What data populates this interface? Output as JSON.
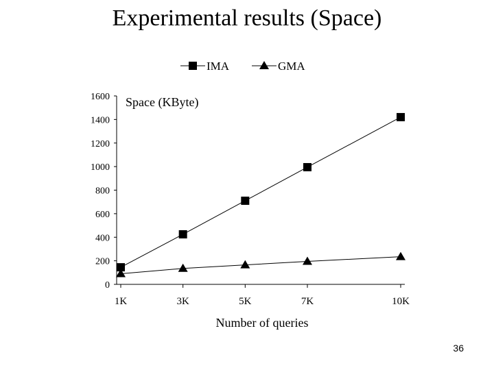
{
  "slide": {
    "title": "Experimental results (Space)",
    "page_number": "36"
  },
  "chart_data": {
    "type": "line",
    "title": "",
    "xlabel": "Number of queries",
    "ylabel": "Space (KByte)",
    "categories": [
      "1K",
      "3K",
      "5K",
      "7K",
      "10K"
    ],
    "x": [
      1,
      3,
      5,
      7,
      10
    ],
    "ylim": [
      0,
      1600
    ],
    "yticks": [
      0,
      200,
      400,
      600,
      800,
      1000,
      1200,
      1400,
      1600
    ],
    "grid": false,
    "legend": "top",
    "series": [
      {
        "name": "IMA",
        "marker": "square",
        "values": [
          145,
          425,
          710,
          995,
          1420
        ],
        "color": "#000000"
      },
      {
        "name": "GMA",
        "marker": "triangle",
        "values": [
          90,
          135,
          165,
          195,
          235
        ],
        "color": "#000000"
      }
    ]
  }
}
